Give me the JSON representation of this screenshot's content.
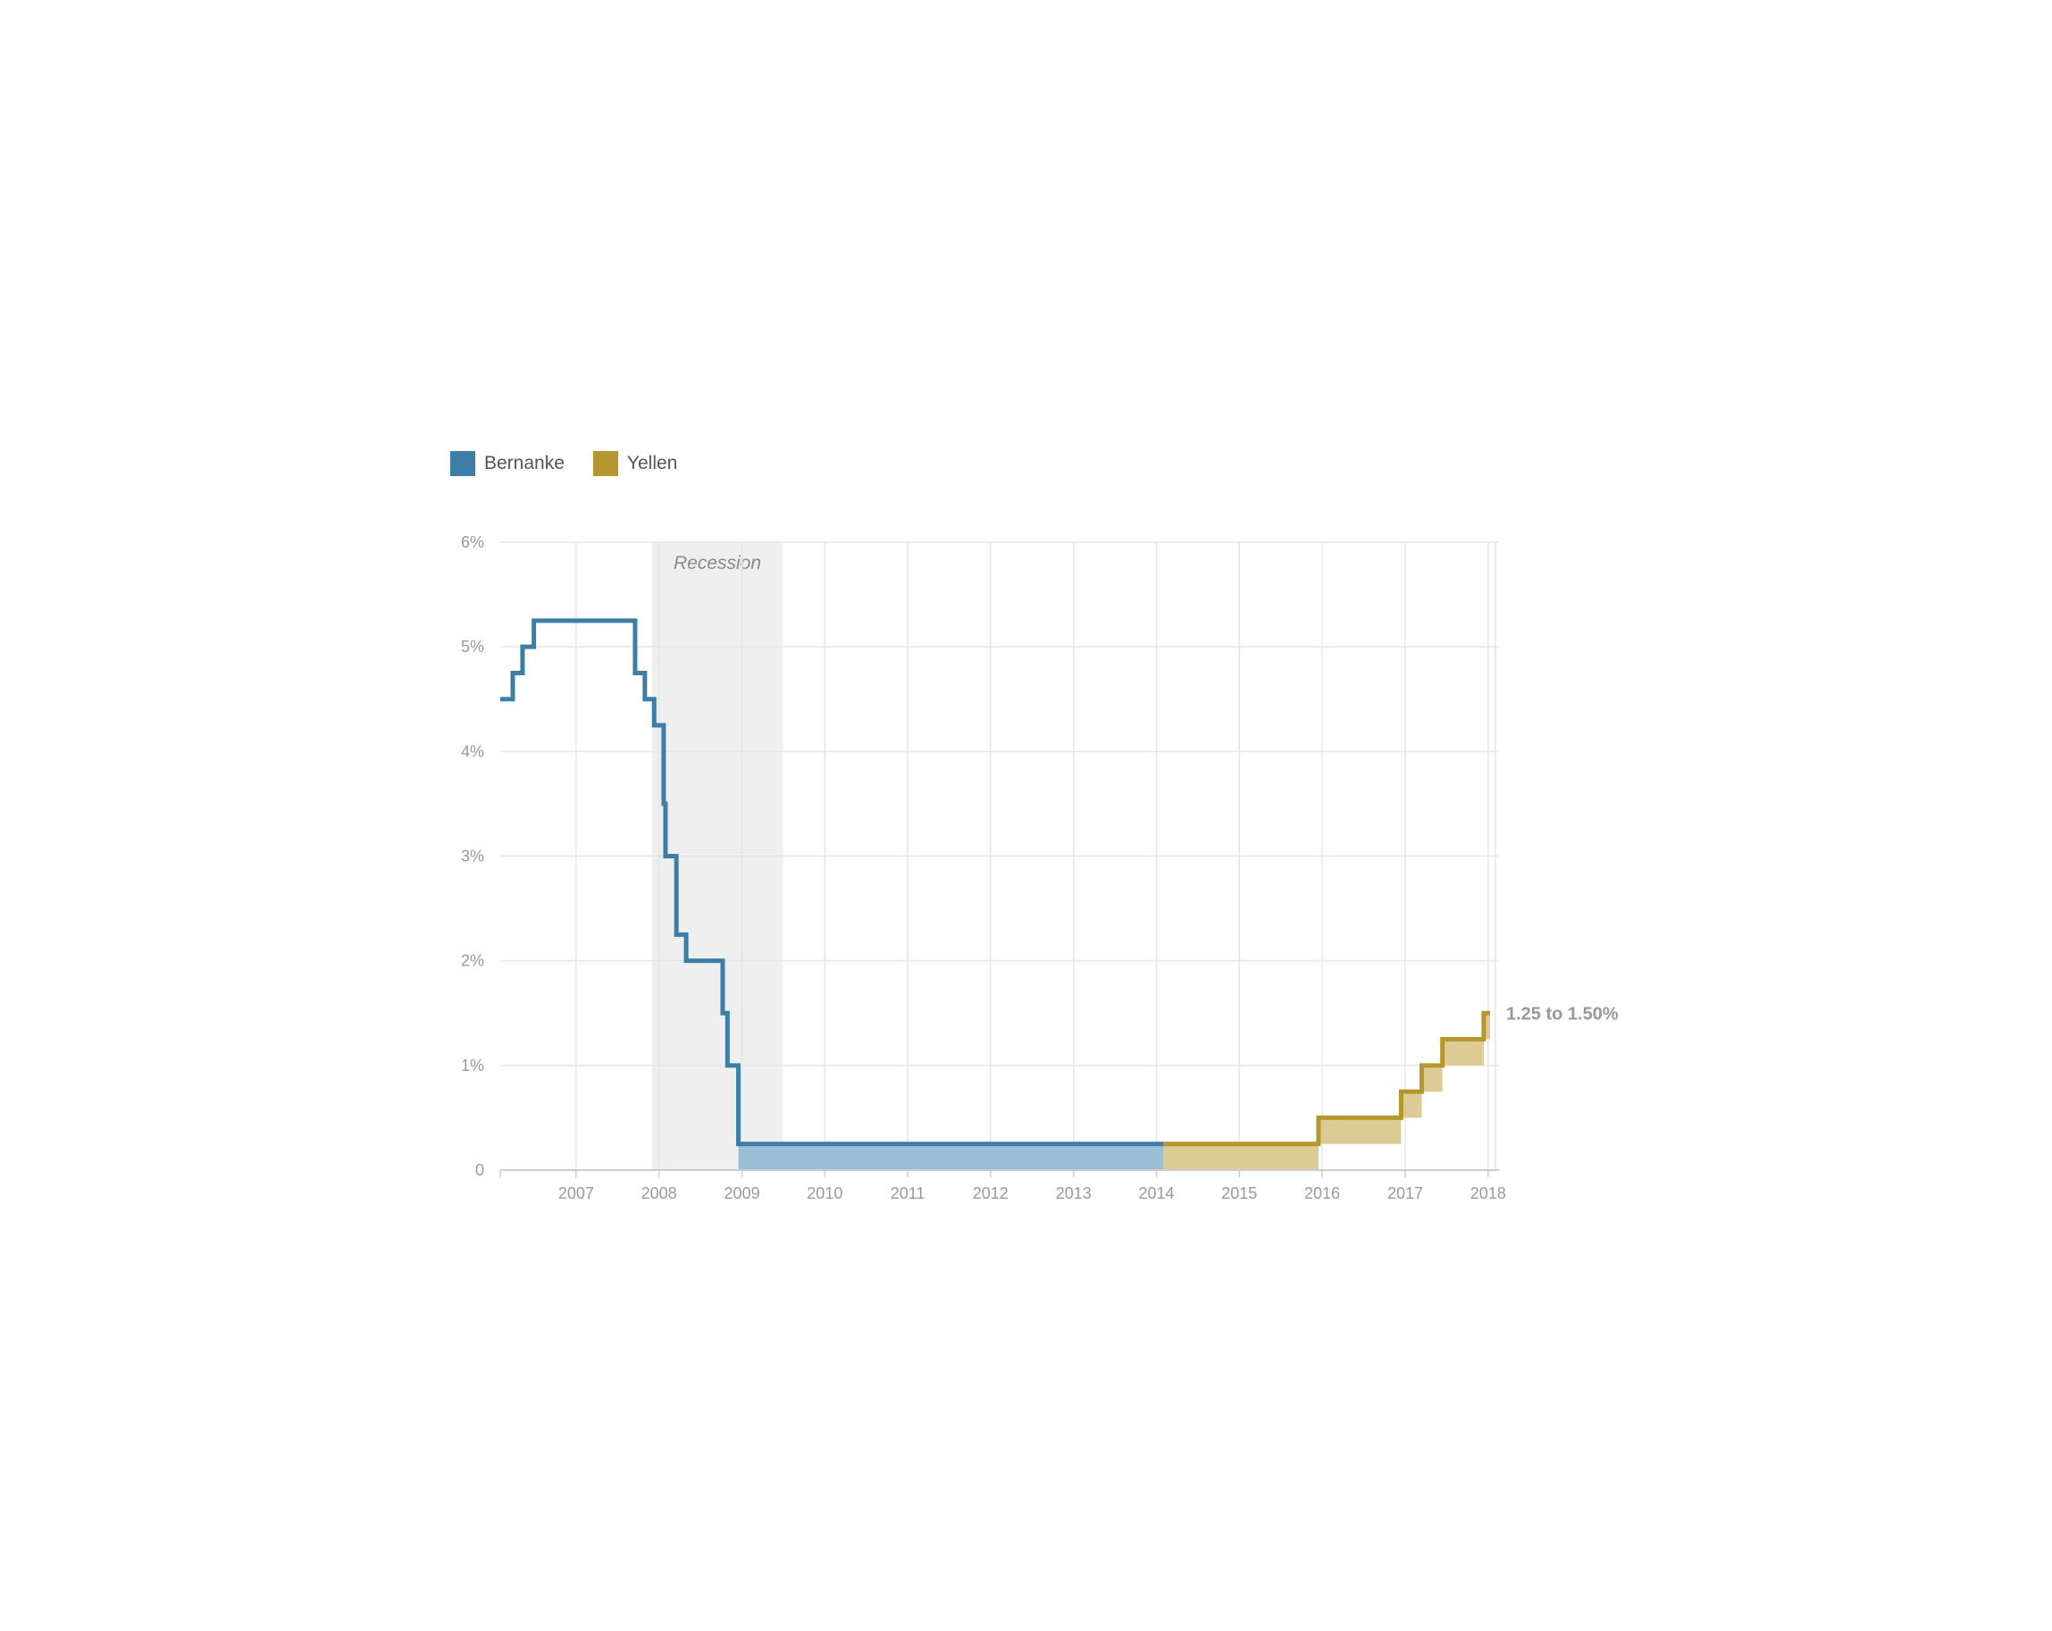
{
  "legend": {
    "items": [
      {
        "name": "Bernanke",
        "color": "#3d7ea6"
      },
      {
        "name": "Yellen",
        "color": "#b5962f"
      }
    ]
  },
  "colors": {
    "bernanke_line": "#3d7ea6",
    "bernanke_fill": "#9bbfd6",
    "yellen_line": "#b5962f",
    "yellen_fill": "#dccb95",
    "recession": "#efefef",
    "grid": "#e6e6e6",
    "axis": "#cccccc"
  },
  "chart_data": {
    "type": "area",
    "title": "",
    "xlabel": "",
    "ylabel": "",
    "xlim": [
      "2006-02-01",
      "2018-01-10"
    ],
    "ylim": [
      0,
      6
    ],
    "x_ticks": [
      "2007",
      "2008",
      "2009",
      "2010",
      "2011",
      "2012",
      "2013",
      "2014",
      "2015",
      "2016",
      "2017",
      "2018"
    ],
    "y_ticks": [
      {
        "value": 0,
        "label": "0"
      },
      {
        "value": 1,
        "label": "1%"
      },
      {
        "value": 2,
        "label": "2%"
      },
      {
        "value": 3,
        "label": "3%"
      },
      {
        "value": 4,
        "label": "4%"
      },
      {
        "value": 5,
        "label": "5%"
      },
      {
        "value": 6,
        "label": "6%"
      }
    ],
    "grid": true,
    "legend_position": "top-left",
    "recession": {
      "start": "2007-12-01",
      "end": "2009-06-30",
      "label": "Recession"
    },
    "series": [
      {
        "name": "Bernanke",
        "steps": [
          {
            "date": "2006-02-01",
            "upper": 4.5
          },
          {
            "date": "2006-03-28",
            "upper": 4.75
          },
          {
            "date": "2006-05-10",
            "upper": 5.0
          },
          {
            "date": "2006-06-29",
            "upper": 5.25
          },
          {
            "date": "2007-09-18",
            "upper": 4.75
          },
          {
            "date": "2007-10-31",
            "upper": 4.5
          },
          {
            "date": "2007-12-11",
            "upper": 4.25
          },
          {
            "date": "2008-01-22",
            "upper": 3.5
          },
          {
            "date": "2008-01-30",
            "upper": 3.0
          },
          {
            "date": "2008-03-18",
            "upper": 2.25
          },
          {
            "date": "2008-04-30",
            "upper": 2.0
          },
          {
            "date": "2008-10-08",
            "upper": 1.5
          },
          {
            "date": "2008-10-29",
            "upper": 1.0
          },
          {
            "date": "2008-12-16",
            "lower": 0.0,
            "upper": 0.25
          }
        ],
        "end": "2014-02-01"
      },
      {
        "name": "Yellen",
        "steps": [
          {
            "date": "2014-02-01",
            "lower": 0.0,
            "upper": 0.25
          },
          {
            "date": "2015-12-16",
            "lower": 0.25,
            "upper": 0.5
          },
          {
            "date": "2016-12-14",
            "lower": 0.5,
            "upper": 0.75
          },
          {
            "date": "2017-03-15",
            "lower": 0.75,
            "upper": 1.0
          },
          {
            "date": "2017-06-14",
            "lower": 1.0,
            "upper": 1.25
          },
          {
            "date": "2017-12-13",
            "lower": 1.25,
            "upper": 1.5
          }
        ],
        "end": "2018-01-10"
      }
    ],
    "end_annotation": "1.25 to 1.50%"
  }
}
